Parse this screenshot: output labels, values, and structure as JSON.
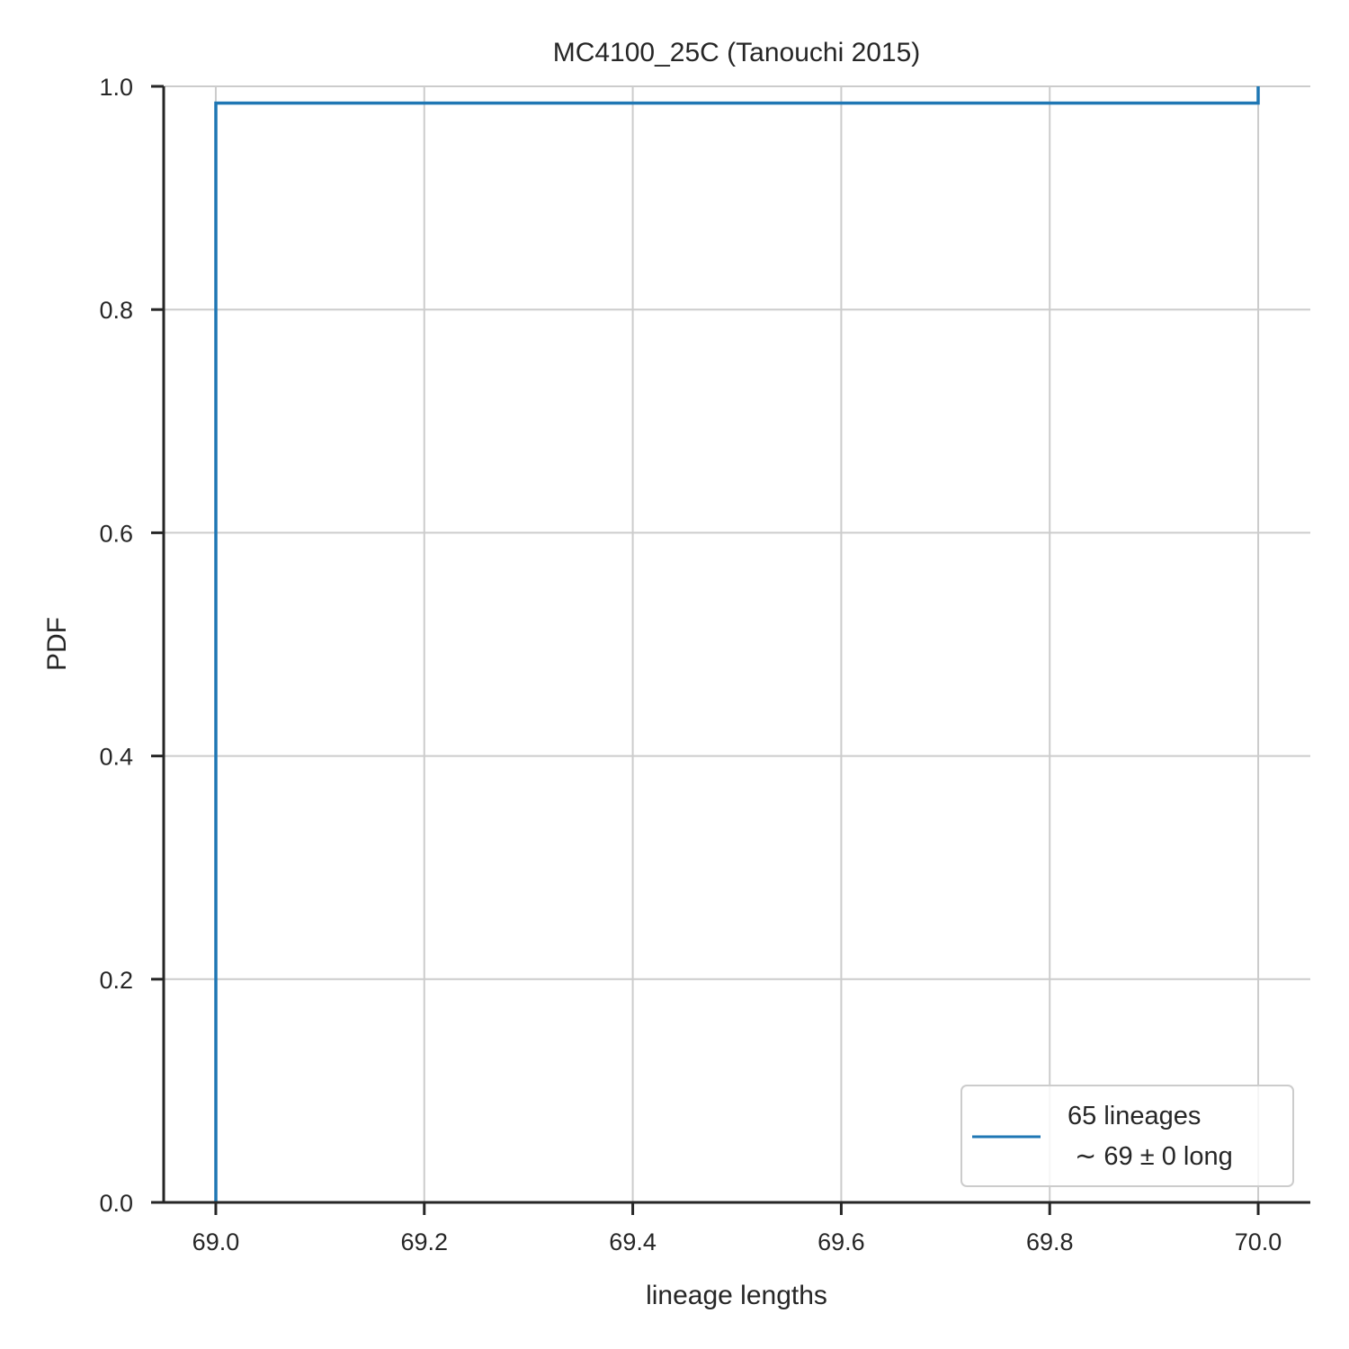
{
  "chart_data": {
    "type": "line",
    "title": "MC4100_25C (Tanouchi 2015)",
    "xlabel": "lineage lengths",
    "ylabel": "PDF",
    "xlim": [
      68.95,
      70.05
    ],
    "ylim": [
      0.0,
      1.0
    ],
    "xticks": [
      69.0,
      69.2,
      69.4,
      69.6,
      69.8,
      70.0
    ],
    "xtick_labels": [
      "69.0",
      "69.2",
      "69.4",
      "69.6",
      "69.8",
      "70.0"
    ],
    "yticks": [
      0.0,
      0.2,
      0.4,
      0.6,
      0.8,
      1.0
    ],
    "ytick_labels": [
      "0.0",
      "0.2",
      "0.4",
      "0.6",
      "0.8",
      "1.0"
    ],
    "grid": true,
    "legend_position": "lower-right",
    "series": [
      {
        "name": "65 lineages\n ~ 69 ± 0 long",
        "legend_line1": "65 lineages",
        "legend_line2": " ∼ 69 ± 0 long",
        "color": "#1f77b4",
        "style": "step",
        "x": [
          69.0,
          69.0,
          70.0,
          70.0
        ],
        "y": [
          0.0,
          0.985,
          0.985,
          1.0
        ]
      }
    ]
  }
}
